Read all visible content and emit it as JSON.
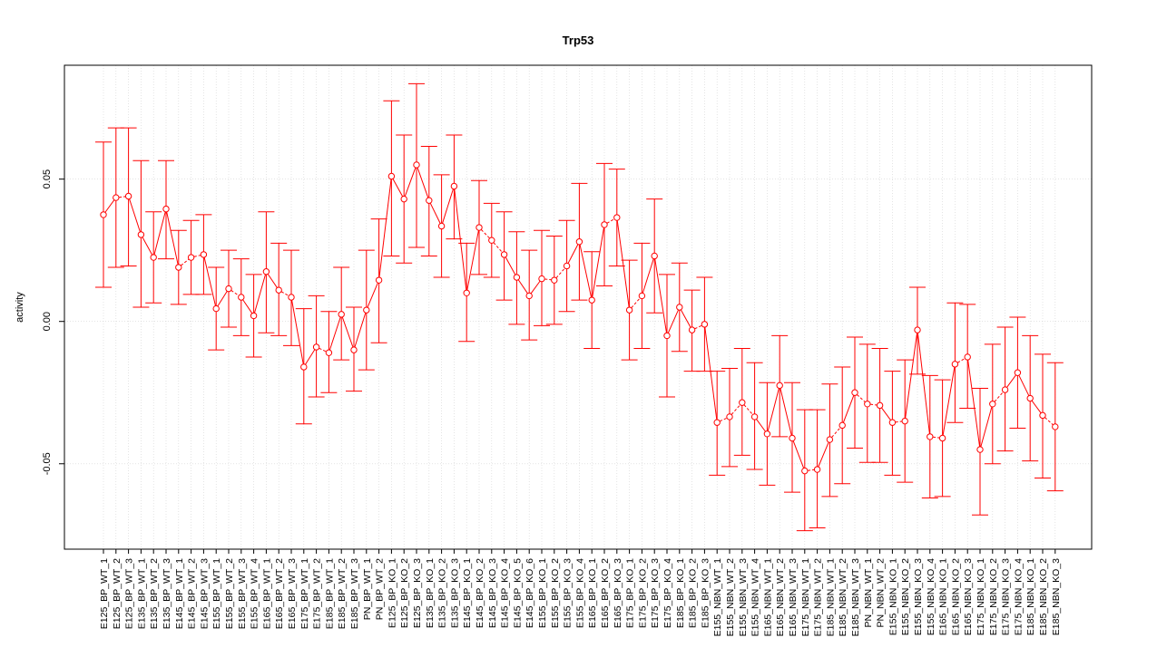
{
  "chart_data": {
    "type": "line",
    "title": "Trp53",
    "xlabel": "",
    "ylabel": "activity",
    "ylim": [
      -0.08,
      0.09
    ],
    "yticks": [
      -0.05,
      0.0,
      0.05
    ],
    "ytick_labels": [
      "-0.05",
      "0.00",
      "0.05"
    ],
    "grid": true,
    "series_color": "#ff0000",
    "grid_color": "#d3d3d3",
    "categories": [
      "E125_BP_WT_1",
      "E125_BP_WT_2",
      "E125_BP_WT_3",
      "E135_BP_WT_1",
      "E135_BP_WT_2",
      "E135_BP_WT_3",
      "E145_BP_WT_1",
      "E145_BP_WT_2",
      "E145_BP_WT_3",
      "E155_BP_WT_1",
      "E155_BP_WT_2",
      "E155_BP_WT_3",
      "E155_BP_WT_4",
      "E165_BP_WT_1",
      "E165_BP_WT_2",
      "E165_BP_WT_3",
      "E175_BP_WT_1",
      "E175_BP_WT_2",
      "E185_BP_WT_1",
      "E185_BP_WT_2",
      "E185_BP_WT_3",
      "PN_BP_WT_1",
      "PN_BP_WT_2",
      "E125_BP_KO_1",
      "E125_BP_KO_2",
      "E125_BP_KO_3",
      "E135_BP_KO_1",
      "E135_BP_KO_2",
      "E135_BP_KO_3",
      "E145_BP_KO_1",
      "E145_BP_KO_2",
      "E145_BP_KO_3",
      "E145_BP_KO_4",
      "E145_BP_KO_5",
      "E145_BP_KO_6",
      "E155_BP_KO_1",
      "E155_BP_KO_2",
      "E155_BP_KO_3",
      "E155_BP_KO_4",
      "E165_BP_KO_1",
      "E165_BP_KO_2",
      "E165_BP_KO_3",
      "E175_BP_KO_1",
      "E175_BP_KO_2",
      "E175_BP_KO_3",
      "E175_BP_KO_4",
      "E185_BP_KO_1",
      "E185_BP_KO_2",
      "E185_BP_KO_3",
      "E155_NBN_WT_1",
      "E155_NBN_WT_2",
      "E155_NBN_WT_3",
      "E155_NBN_WT_4",
      "E165_NBN_WT_1",
      "E165_NBN_WT_2",
      "E165_NBN_WT_3",
      "E175_NBN_WT_1",
      "E175_NBN_WT_2",
      "E185_NBN_WT_1",
      "E185_NBN_WT_2",
      "E185_NBN_WT_3",
      "PN_NBN_WT_1",
      "PN_NBN_WT_2",
      "E155_NBN_KO_1",
      "E155_NBN_KO_2",
      "E155_NBN_KO_3",
      "E155_NBN_KO_4",
      "E165_NBN_KO_1",
      "E165_NBN_KO_2",
      "E165_NBN_KO_3",
      "E175_NBN_KO_1",
      "E175_NBN_KO_2",
      "E175_NBN_KO_3",
      "E175_NBN_KO_4",
      "E185_NBN_KO_1",
      "E185_NBN_KO_2",
      "E185_NBN_KO_3"
    ],
    "values": [
      0.0375,
      0.0435,
      0.044,
      0.0305,
      0.0225,
      0.0395,
      0.019,
      0.0225,
      0.0235,
      0.0045,
      0.0115,
      0.0085,
      0.002,
      0.0175,
      0.011,
      0.0085,
      -0.016,
      -0.009,
      -0.011,
      0.0025,
      -0.01,
      0.004,
      0.0145,
      0.051,
      0.043,
      0.055,
      0.0425,
      0.0335,
      0.0475,
      0.01,
      0.033,
      0.0285,
      0.0235,
      0.0155,
      0.009,
      0.015,
      0.0145,
      0.0195,
      0.028,
      0.0075,
      0.034,
      0.0365,
      0.004,
      0.009,
      0.023,
      -0.005,
      0.005,
      -0.003,
      -0.001,
      -0.0355,
      -0.0335,
      -0.0285,
      -0.0335,
      -0.0395,
      -0.0225,
      -0.041,
      -0.0525,
      -0.052,
      -0.0415,
      -0.0365,
      -0.025,
      -0.029,
      -0.0295,
      -0.0355,
      -0.035,
      -0.003,
      -0.0405,
      -0.041,
      -0.015,
      -0.0125,
      -0.045,
      -0.029,
      -0.024,
      -0.018,
      -0.027,
      -0.033,
      -0.037
    ],
    "upper": [
      0.063,
      0.068,
      0.068,
      0.0565,
      0.0385,
      0.0565,
      0.032,
      0.0355,
      0.0375,
      0.019,
      0.025,
      0.022,
      0.0165,
      0.0385,
      0.0275,
      0.025,
      0.0045,
      0.009,
      0.0035,
      0.019,
      0.005,
      0.025,
      0.036,
      0.0775,
      0.0655,
      0.0835,
      0.0615,
      0.0515,
      0.0655,
      0.0275,
      0.0495,
      0.0415,
      0.0385,
      0.0315,
      0.025,
      0.032,
      0.03,
      0.0355,
      0.0485,
      0.0245,
      0.0555,
      0.0535,
      0.0215,
      0.0275,
      0.043,
      0.0165,
      0.0205,
      0.011,
      0.0155,
      -0.0175,
      -0.0165,
      -0.0095,
      -0.0145,
      -0.0215,
      -0.005,
      -0.0215,
      -0.031,
      -0.031,
      -0.022,
      -0.016,
      -0.0055,
      -0.008,
      -0.0095,
      -0.0175,
      -0.0135,
      0.012,
      -0.019,
      -0.0205,
      0.0065,
      0.006,
      -0.0235,
      -0.008,
      -0.002,
      0.0015,
      -0.005,
      -0.0115,
      -0.0145
    ],
    "lower": [
      0.012,
      0.019,
      0.0195,
      0.005,
      0.0065,
      0.022,
      0.006,
      0.0095,
      0.0095,
      -0.01,
      -0.002,
      -0.005,
      -0.0125,
      -0.004,
      -0.005,
      -0.0085,
      -0.036,
      -0.0265,
      -0.025,
      -0.0135,
      -0.0245,
      -0.017,
      -0.0075,
      0.023,
      0.0205,
      0.026,
      0.023,
      0.0155,
      0.029,
      -0.007,
      0.0165,
      0.0155,
      0.0075,
      -0.001,
      -0.0065,
      -0.0015,
      -0.001,
      0.0035,
      0.0075,
      -0.0095,
      0.0125,
      0.0195,
      -0.0135,
      -0.0095,
      0.003,
      -0.0265,
      -0.0105,
      -0.0175,
      -0.0175,
      -0.054,
      -0.051,
      -0.047,
      -0.052,
      -0.0575,
      -0.0405,
      -0.06,
      -0.0735,
      -0.0725,
      -0.0615,
      -0.057,
      -0.0445,
      -0.0495,
      -0.0495,
      -0.054,
      -0.0565,
      -0.0185,
      -0.062,
      -0.0615,
      -0.0355,
      -0.0305,
      -0.068,
      -0.05,
      -0.0455,
      -0.0375,
      -0.049,
      -0.055,
      -0.0595
    ]
  }
}
